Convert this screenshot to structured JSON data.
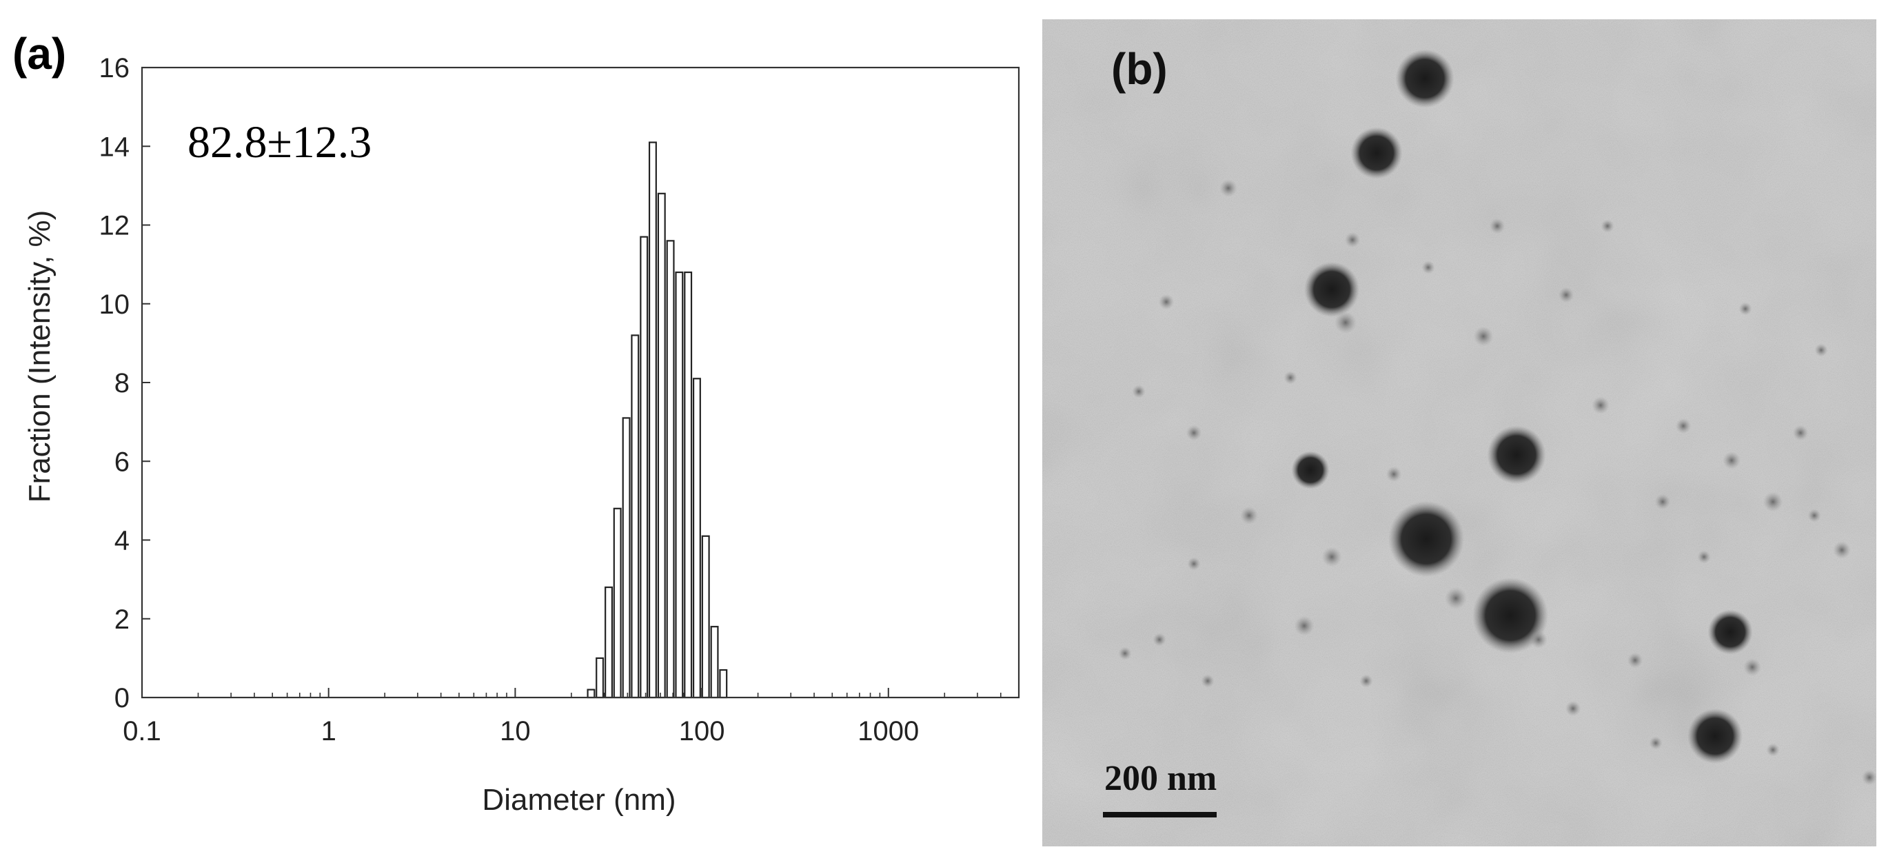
{
  "panel_a": {
    "label": "(a)",
    "chart_data": {
      "type": "bar",
      "xscale": "log",
      "xlim": [
        0.1,
        5000
      ],
      "ylim": [
        0,
        16
      ],
      "xlabel": "Diameter (nm)",
      "ylabel": "Fraction (Intensity, %)",
      "xticks": [
        0.1,
        1,
        10,
        100,
        1000
      ],
      "xtick_labels": [
        "0.1",
        "1",
        "10",
        "100",
        "1000"
      ],
      "yticks": [
        0,
        2,
        4,
        6,
        8,
        10,
        12,
        14,
        16
      ],
      "ytick_labels": [
        "0",
        "2",
        "4",
        "6",
        "8",
        "10",
        "12",
        "14",
        "16"
      ],
      "annotation": "82.8±12.3",
      "x": [
        25.5,
        28.4,
        31.7,
        35.3,
        39.4,
        43.9,
        49,
        54.6,
        60.9,
        67.9,
        75.7,
        84.4,
        94.1,
        104.9,
        117,
        130.4,
        145.4,
        162.1,
        180.8,
        201.6
      ],
      "values": [
        0.2,
        1.0,
        2.8,
        4.8,
        7.1,
        9.2,
        11.7,
        14.1,
        12.8,
        11.6,
        10.8,
        10.8,
        8.1,
        4.1,
        1.8,
        0.7,
        0,
        0,
        0,
        0
      ],
      "grid": false
    }
  },
  "panel_b": {
    "label": "(b)",
    "scale_bar_label": "200 nm",
    "image": "TEM micrograph of dark spherical nanoparticles on grey background"
  }
}
